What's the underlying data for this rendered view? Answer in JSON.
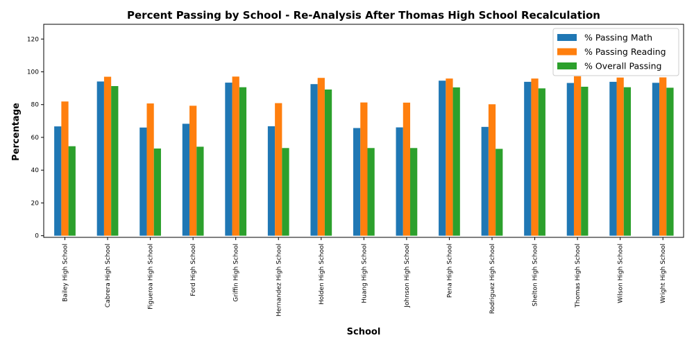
{
  "chart_data": {
    "type": "bar",
    "title": "Percent Passing by School - Re-Analysis After Thomas High School Recalculation",
    "xlabel": "School",
    "ylabel": "Percentage",
    "ylim": [
      -1,
      129
    ],
    "yticks": [
      0,
      20,
      40,
      60,
      80,
      100,
      120
    ],
    "grid": false,
    "legend_position": "top-right",
    "categories": [
      "Bailey High School",
      "Cabrera High School",
      "Figueroa High School",
      "Ford High School",
      "Griffin High School",
      "Hernandez High School",
      "Holden High School",
      "Huang High School",
      "Johnson High School",
      "Pena High School",
      "Rodriguez High School",
      "Shelton High School",
      "Thomas High School",
      "Wilson High School",
      "Wright High School"
    ],
    "series": [
      {
        "name": "% Passing Math",
        "color": "#1f77b4",
        "values": [
          66.7,
          94.1,
          66.0,
          68.3,
          93.4,
          66.8,
          92.5,
          65.7,
          66.1,
          94.6,
          66.4,
          93.9,
          93.2,
          93.9,
          93.3
        ]
      },
      {
        "name": "% Passing Reading",
        "color": "#ff7f0e",
        "values": [
          81.9,
          97.0,
          80.7,
          79.3,
          97.1,
          80.9,
          96.3,
          81.3,
          81.2,
          95.9,
          80.2,
          95.9,
          97.3,
          96.5,
          96.6
        ]
      },
      {
        "name": "% Overall Passing",
        "color": "#2ca02c",
        "values": [
          54.6,
          91.3,
          53.2,
          54.3,
          90.6,
          53.5,
          89.2,
          53.5,
          53.5,
          90.5,
          53.0,
          89.9,
          90.9,
          90.6,
          90.3
        ]
      }
    ]
  }
}
